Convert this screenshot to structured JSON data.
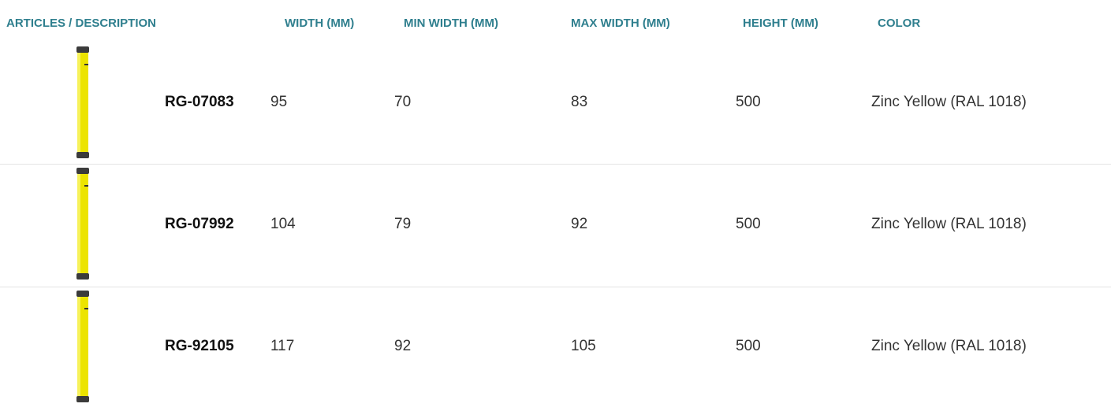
{
  "table": {
    "header": [
      "ARTICLES / DESCRIPTION",
      "WIDTH (MM)",
      "MIN WIDTH (MM)",
      "MAX WIDTH (MM)",
      "HEIGHT (MM)",
      "COLOR"
    ],
    "rows": [
      [
        "RG-07083",
        95,
        70,
        83,
        500,
        "Zinc Yellow (RAL 1018)"
      ],
      [
        "RG-07992",
        104,
        79,
        92,
        500,
        "Zinc Yellow (RAL 1018)"
      ],
      [
        "RG-92105",
        117,
        92,
        105,
        500,
        "Zinc Yellow (RAL 1018)"
      ]
    ]
  }
}
